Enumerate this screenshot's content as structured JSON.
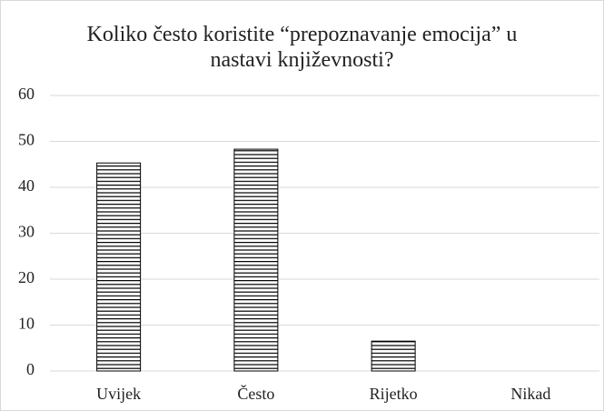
{
  "chart_data": {
    "type": "bar",
    "title": "Koliko često koristite “prepoznavanje emocija” u nastavi književnosti?",
    "categories": [
      "Uvijek",
      "Često",
      "Rijetko",
      "Nikad"
    ],
    "values": [
      45.3,
      48.3,
      6.5,
      0
    ],
    "color": "#000000",
    "ylim": [
      0,
      60
    ],
    "yticks": [
      0,
      10,
      20,
      30,
      40,
      50,
      60
    ],
    "grid": true
  }
}
